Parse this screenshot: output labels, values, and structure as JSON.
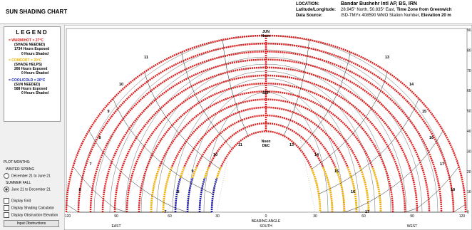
{
  "header": {
    "title": "SUN SHADING CHART",
    "location_label": "LOCATION:",
    "location": "Bandar Bushehr Intl AP, BS, IRN",
    "latlon_label": "Latitude/Longitude:",
    "latlon": "28.945° North, 50.835° East,",
    "tz": "Time Zone from Greenwich",
    "source_label": "Data Source:",
    "source": "ISD-TMYx     408590 WMO Station Number,",
    "elevation": "Elevation 20 m"
  },
  "legend": {
    "title": "LEGEND",
    "items": [
      {
        "label": "= WARM/HOT > 27°C",
        "note": "(SHADE NEEDED)",
        "exposed": "1734 Hours Exposed",
        "shaded": "0 Hours Shaded"
      },
      {
        "label": "= COMFORT > 20°C",
        "note": "(SHADE HELPS)",
        "exposed": "266 Hours Exposed",
        "shaded": "0 Hours Shaded"
      },
      {
        "label": "= COOL/COLD < 20°C",
        "note": "(SUN NEEDED)",
        "exposed": "588 Hours Exposed",
        "shaded": "0 Hours Shaded"
      }
    ]
  },
  "controls": {
    "plot_months": "PLOT MONTHS:",
    "winter_spring": "WINTER SPRING",
    "option1": "December 21 to June 21",
    "summer_fall": "SUMMER FALL",
    "option2": "June 21 to December 21",
    "display_grid": "Display Grid",
    "display_shading": "Display Shading Calculator",
    "display_obstruction": "Display Obstruction Elevation",
    "button": "Input Obstructions"
  },
  "chart": {
    "x_ticks": [
      "120",
      "90",
      "60",
      "30",
      "0",
      "30",
      "60",
      "90",
      "120"
    ],
    "y_ticks": [
      "90",
      "80",
      "70",
      "60",
      "50",
      "40",
      "30",
      "20",
      "10",
      "0"
    ],
    "east": "EAST",
    "bearing": "BEARING ANGLE",
    "south": "SOUTH",
    "west": "WEST",
    "jun": "JUN",
    "jun_noon": "Noon",
    "sep": "SEP",
    "dec_noon": "Noon",
    "dec": "DEC",
    "outer_hours": [
      "11",
      "10",
      "9",
      "8",
      "7",
      "6",
      "13",
      "14",
      "15",
      "16",
      "17",
      "18"
    ],
    "inner_hours": [
      "11",
      "10",
      "9",
      "8",
      "7",
      "13",
      "14",
      "15",
      "16",
      "17"
    ]
  }
}
